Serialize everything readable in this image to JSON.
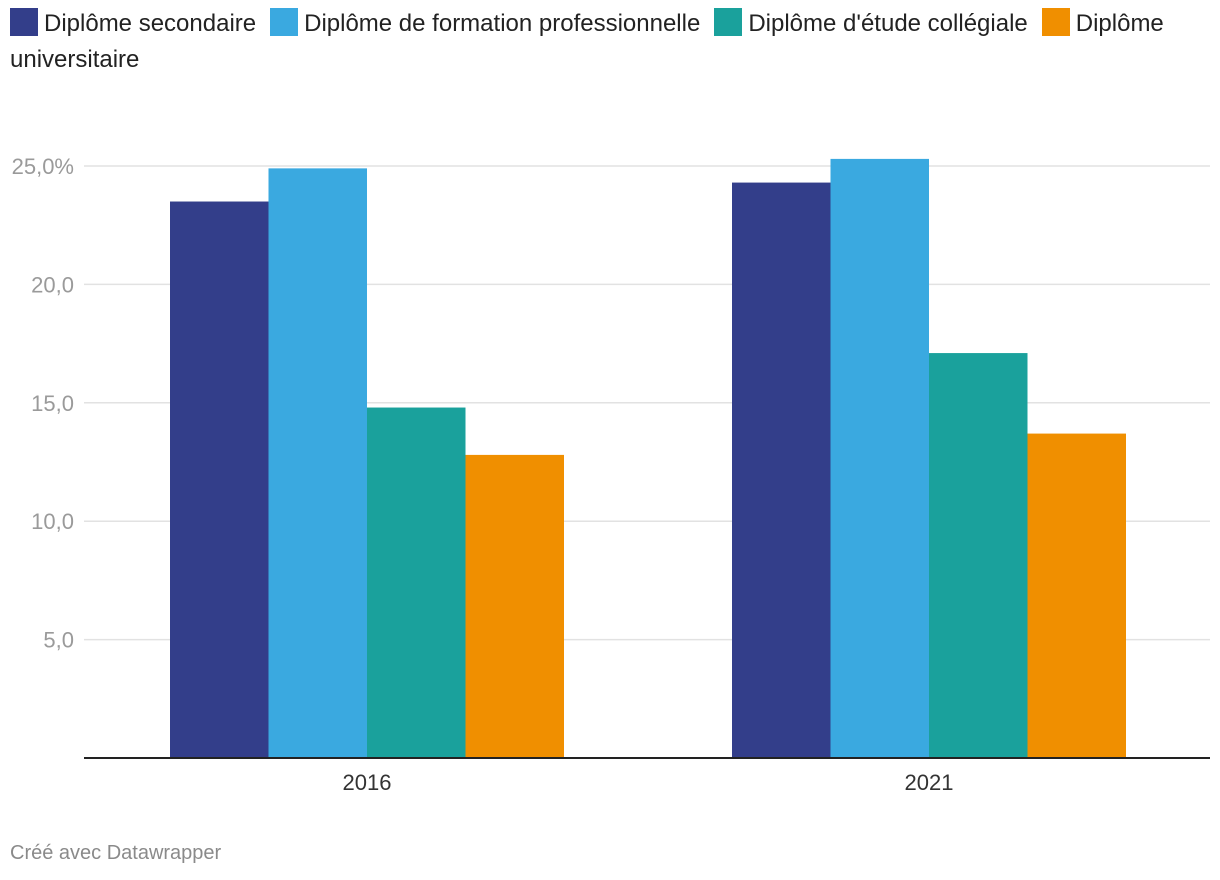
{
  "chart_data": {
    "type": "bar",
    "categories": [
      "2016",
      "2021"
    ],
    "series": [
      {
        "name": "Diplôme secondaire",
        "values": [
          23.5,
          24.3
        ],
        "color": "#333e8a"
      },
      {
        "name": "Diplôme de formation professionnelle",
        "values": [
          24.9,
          25.3
        ],
        "color": "#3aa9e0"
      },
      {
        "name": "Diplôme d'étude collégiale",
        "values": [
          14.8,
          17.1
        ],
        "color": "#1aa19c"
      },
      {
        "name": "Diplôme universitaire",
        "values": [
          12.8,
          13.7
        ],
        "color": "#f08f00"
      }
    ],
    "y_ticks": [
      {
        "value": 5,
        "label": "5,0"
      },
      {
        "value": 10,
        "label": "10,0"
      },
      {
        "value": 15,
        "label": "15,0"
      },
      {
        "value": 20,
        "label": "20,0"
      },
      {
        "value": 25,
        "label": "25,0%"
      }
    ],
    "ylim": [
      0,
      25
    ],
    "grid": true,
    "legend": "top-left"
  },
  "footer": {
    "credit": "Créé avec Datawrapper"
  }
}
